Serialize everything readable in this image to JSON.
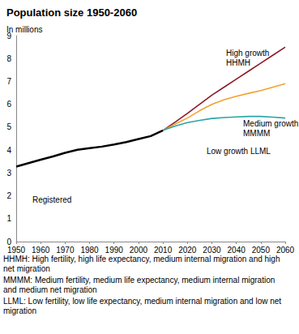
{
  "chart_data": {
    "type": "line",
    "title": "Population size 1950-2060",
    "subtitle": "In millions",
    "x": [
      1950,
      1955,
      1960,
      1965,
      1970,
      1975,
      1980,
      1985,
      1990,
      1995,
      2000,
      2005,
      2010,
      2015,
      2020,
      2025,
      2030,
      2035,
      2040,
      2045,
      2050,
      2055,
      2060
    ],
    "series": [
      {
        "name": "Registered",
        "color": "#000000",
        "values": [
          3.28,
          3.43,
          3.58,
          3.72,
          3.88,
          4.01,
          4.08,
          4.15,
          4.24,
          4.35,
          4.48,
          4.61,
          4.86,
          null,
          null,
          null,
          null,
          null,
          null,
          null,
          null,
          null,
          null
        ]
      },
      {
        "name": "High growth\nHHMH",
        "color": "#8b1a2b",
        "values": [
          null,
          null,
          null,
          null,
          null,
          null,
          null,
          null,
          null,
          null,
          null,
          null,
          4.86,
          5.22,
          5.6,
          6.0,
          6.4,
          6.75,
          7.1,
          7.45,
          7.8,
          8.15,
          8.5
        ]
      },
      {
        "name": "Medium growth\nMMMM",
        "color": "#f5a030",
        "values": [
          null,
          null,
          null,
          null,
          null,
          null,
          null,
          null,
          null,
          null,
          null,
          null,
          4.86,
          5.14,
          5.4,
          5.72,
          6.0,
          6.2,
          6.35,
          6.48,
          6.6,
          6.75,
          6.9
        ]
      },
      {
        "name": "Low growth LLML",
        "color": "#2aa5a5",
        "values": [
          null,
          null,
          null,
          null,
          null,
          null,
          null,
          null,
          null,
          null,
          null,
          null,
          4.86,
          5.05,
          5.2,
          5.3,
          5.38,
          5.42,
          5.45,
          5.47,
          5.47,
          5.44,
          5.4
        ]
      }
    ],
    "xlim": [
      1950,
      2060
    ],
    "xticks": [
      1950,
      1960,
      1970,
      1980,
      1990,
      2000,
      2010,
      2020,
      2030,
      2040,
      2050,
      2060
    ],
    "ylim": [
      0,
      9
    ],
    "yticks": [
      0,
      1,
      2,
      3,
      4,
      5,
      6,
      7,
      8,
      9
    ],
    "grid": false,
    "notes": [
      "HHMH: High fertility, high life expectancy, medium internal migration and high net migration",
      "MMMM: Medium fertility, medium life expectancy, medium internal migration and medium net migration",
      "LLML: Low fertility, low life expectancy, medium internal migration and low net migration"
    ]
  }
}
